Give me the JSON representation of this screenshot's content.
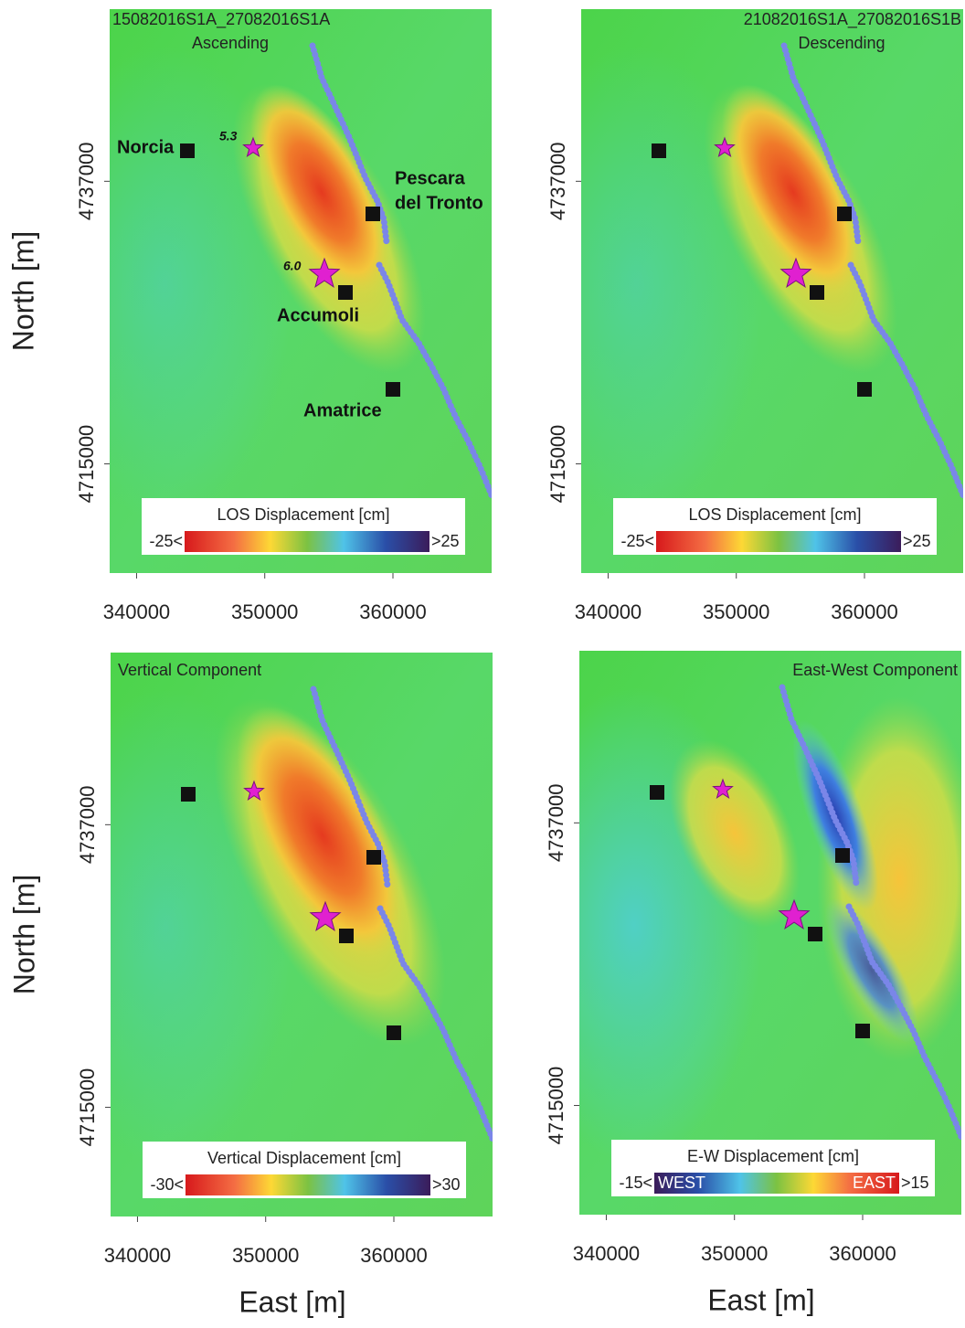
{
  "axes": {
    "x_label": "East [m]",
    "y_label": "North [m]",
    "xlim": [
      337900,
      367700
    ],
    "ylim": [
      4706500,
      4750400
    ],
    "xticks": [
      340000,
      350000,
      360000
    ],
    "yticks": [
      4715000,
      4737000
    ]
  },
  "panels": [
    {
      "title": "15082016S1A_27082016S1A",
      "subtitle": "Ascending",
      "colorbar": {
        "title": "LOS Displacement [cm]",
        "min_label": "-25<",
        "max_label": ">25"
      }
    },
    {
      "title": "21082016S1A_27082016S1B",
      "subtitle": "Descending",
      "colorbar": {
        "title": "LOS Displacement [cm]",
        "min_label": "-25<",
        "max_label": ">25"
      }
    },
    {
      "title": "Vertical Component",
      "colorbar": {
        "title": "Vertical Displacement [cm]",
        "min_label": "-30<",
        "max_label": ">30"
      }
    },
    {
      "title": "East-West Component",
      "colorbar": {
        "title": "E-W Displacement [cm]",
        "min_label": "-15<",
        "max_label": ">15",
        "left_word": "WEST",
        "right_word": "EAST"
      }
    }
  ],
  "places": [
    {
      "lines": [
        "Norcia"
      ]
    },
    {
      "lines": [
        "Pescara",
        "del Tronto"
      ]
    },
    {
      "lines": [
        "Accumoli"
      ]
    },
    {
      "lines": [
        "Amatrice"
      ]
    }
  ],
  "magnitudes": [
    "5.3",
    "6.0"
  ]
}
